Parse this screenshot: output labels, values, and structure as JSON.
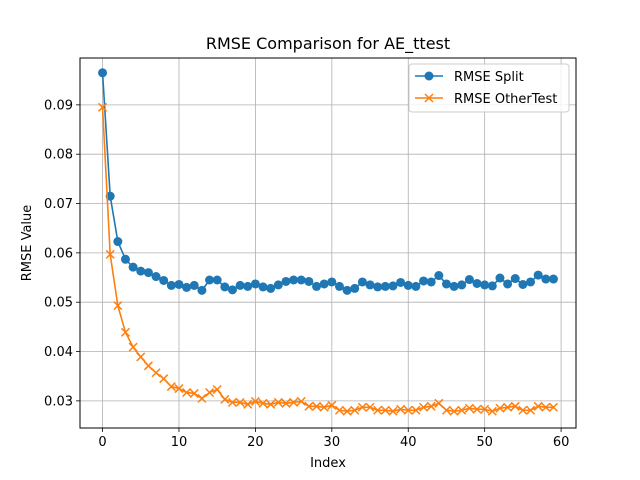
{
  "chart_data": {
    "type": "line",
    "title": "RMSE Comparison for AE_ttest",
    "xlabel": "Index",
    "ylabel": "RMSE Value",
    "xlim": [
      -2.95,
      61.95
    ],
    "ylim": [
      0.0245,
      0.0995
    ],
    "xticks": [
      0,
      10,
      20,
      30,
      40,
      50,
      60
    ],
    "yticks": [
      0.03,
      0.04,
      0.05,
      0.06,
      0.07,
      0.08,
      0.09
    ],
    "grid": true,
    "legend_position": "top-right",
    "series": [
      {
        "name": "RMSE Split",
        "color": "#1f77b4",
        "marker": "circle",
        "x": [
          0,
          1,
          2,
          3,
          4,
          5,
          6,
          7,
          8,
          9,
          10,
          11,
          12,
          13,
          14,
          15,
          16,
          17,
          18,
          19,
          20,
          21,
          22,
          23,
          24,
          25,
          26,
          27,
          28,
          29,
          30,
          31,
          32,
          33,
          34,
          35,
          36,
          37,
          38,
          39,
          40,
          41,
          42,
          43,
          44,
          45,
          46,
          47,
          48,
          49,
          50,
          51,
          52,
          53,
          54,
          55,
          56,
          57,
          58,
          59
        ],
        "values": [
          0.0965,
          0.0715,
          0.0623,
          0.0587,
          0.0571,
          0.0563,
          0.056,
          0.0552,
          0.0544,
          0.0534,
          0.0536,
          0.053,
          0.0534,
          0.0524,
          0.0545,
          0.0545,
          0.0531,
          0.0525,
          0.0534,
          0.0532,
          0.0537,
          0.0531,
          0.0528,
          0.0535,
          0.0542,
          0.0545,
          0.0545,
          0.0542,
          0.0532,
          0.0537,
          0.0541,
          0.0532,
          0.0524,
          0.0528,
          0.0541,
          0.0535,
          0.0531,
          0.0532,
          0.0533,
          0.054,
          0.0534,
          0.0532,
          0.0543,
          0.0541,
          0.0554,
          0.0537,
          0.0532,
          0.0535,
          0.0546,
          0.0538,
          0.0535,
          0.0533,
          0.0549,
          0.0537,
          0.0548,
          0.0536,
          0.0541,
          0.0555,
          0.0547,
          0.0547
        ]
      },
      {
        "name": "RMSE OtherTest",
        "color": "#ff7f0e",
        "marker": "x",
        "x": [
          0,
          1,
          2,
          3,
          4,
          5,
          6,
          7,
          8,
          9,
          10,
          11,
          12,
          13,
          14,
          15,
          16,
          17,
          18,
          19,
          20,
          21,
          22,
          23,
          24,
          25,
          26,
          27,
          28,
          29,
          30,
          31,
          32,
          33,
          34,
          35,
          36,
          37,
          38,
          39,
          40,
          41,
          42,
          43,
          44,
          45,
          46,
          47,
          48,
          49,
          50,
          51,
          52,
          53,
          54,
          55,
          56,
          57,
          58,
          59
        ],
        "values": [
          0.0895,
          0.0597,
          0.0493,
          0.0439,
          0.0409,
          0.0389,
          0.0371,
          0.0357,
          0.0345,
          0.0329,
          0.0325,
          0.0317,
          0.0315,
          0.0305,
          0.0317,
          0.0323,
          0.0303,
          0.0297,
          0.0297,
          0.0293,
          0.0299,
          0.0295,
          0.0293,
          0.0297,
          0.0295,
          0.0297,
          0.0299,
          0.0289,
          0.0289,
          0.0287,
          0.0291,
          0.0281,
          0.0279,
          0.0281,
          0.0287,
          0.0287,
          0.0281,
          0.0281,
          0.0279,
          0.0283,
          0.0281,
          0.0281,
          0.0287,
          0.0289,
          0.0295,
          0.0281,
          0.0279,
          0.0281,
          0.0285,
          0.0283,
          0.0283,
          0.0279,
          0.0285,
          0.0287,
          0.0289,
          0.0281,
          0.0281,
          0.0289,
          0.0287,
          0.0287
        ]
      }
    ]
  }
}
